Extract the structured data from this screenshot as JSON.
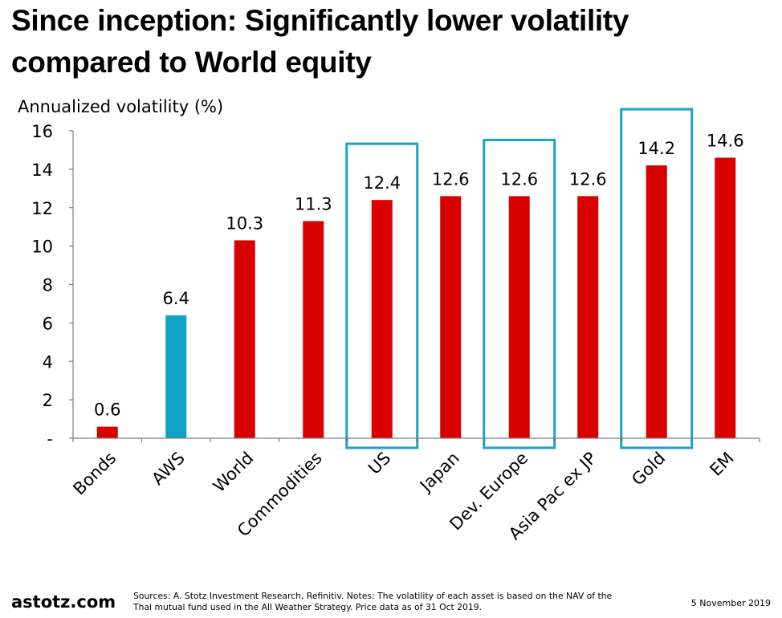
{
  "title": {
    "line1": "Since inception: Significantly lower volatility",
    "line2": "compared to World equity"
  },
  "chart_data": {
    "type": "bar",
    "title": "Since inception: Significantly lower volatility compared to World equity",
    "ylabel": "Annualized volatility (%)",
    "xlabel": "",
    "ylim": [
      0,
      16
    ],
    "yticks": [
      0,
      2,
      4,
      6,
      8,
      10,
      12,
      14,
      16
    ],
    "ytick_labels": [
      "-",
      "2",
      "4",
      "6",
      "8",
      "10",
      "12",
      "14",
      "16"
    ],
    "grid": false,
    "categories": [
      "Bonds",
      "AWS",
      "World",
      "Commodities",
      "US",
      "Japan",
      "Dev. Europe",
      "Asia Pac ex JP",
      "Gold",
      "EM"
    ],
    "values": [
      0.6,
      6.4,
      10.3,
      11.3,
      12.4,
      12.6,
      12.6,
      12.6,
      14.2,
      14.6
    ],
    "data_labels": [
      "0.6",
      "6.4",
      "10.3",
      "11.3",
      "12.4",
      "12.6",
      "12.6",
      "12.6",
      "14.2",
      "14.6"
    ],
    "highlighted_bar": "AWS",
    "boxed_categories": [
      "US",
      "Dev. Europe",
      "Gold"
    ],
    "colors": {
      "default_bar": "#d90000",
      "highlight_bar": "#0fa3c7",
      "box_outline": "#1aa3c6"
    }
  },
  "footer": {
    "brand": "astotz.com",
    "notes_line1": "Sources: A. Stotz Investment Research, Refinitiv. Notes: The volatility of each asset is based on the NAV of the",
    "notes_line2": "Thai mutual fund used in the All Weather Strategy. Price data as of 31 Oct 2019.",
    "date": "5 November 2019"
  }
}
